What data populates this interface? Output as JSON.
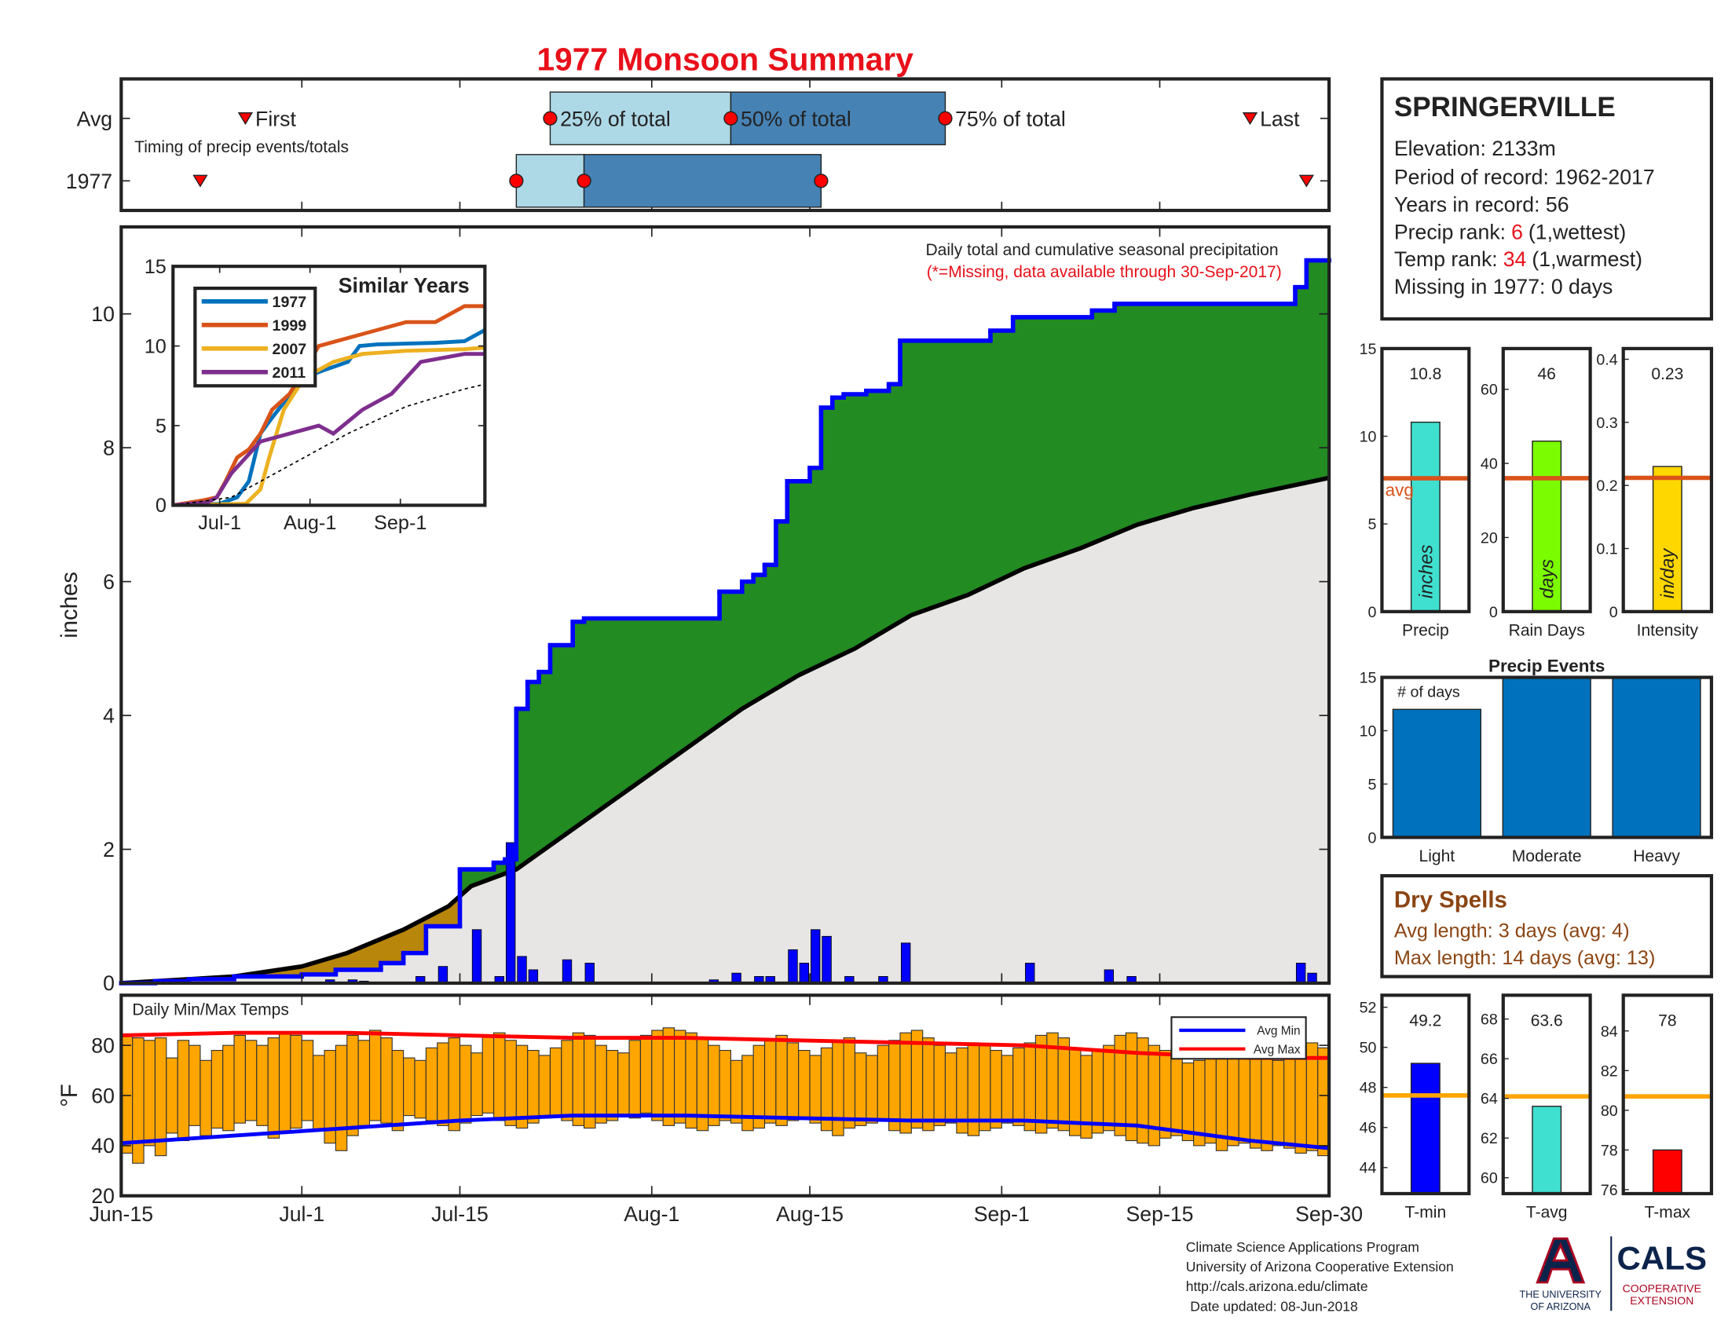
{
  "title": "1977 Monsoon Summary",
  "chart_data": [
    {
      "type": "timing",
      "rows": [
        "Avg",
        "1977"
      ],
      "xlim": [
        0,
        107
      ],
      "xticks": [
        0,
        16,
        30,
        47,
        61,
        78,
        92,
        107
      ],
      "series": [
        {
          "first": 11,
          "q25": 38,
          "q50": 54,
          "q75": 73,
          "last": 100
        },
        {
          "first": 7,
          "q25": 35,
          "q50": 41,
          "q75": 62,
          "last": 105
        }
      ],
      "labels": {
        "first": "First",
        "q25": "25% of total",
        "q50": "50% of total",
        "q75": "75% of total",
        "last": "Last"
      },
      "note": "Timing of precip events/totals",
      "colors": [
        "#add8e6",
        "#4682b4"
      ],
      "marker_color": "#ff0000"
    },
    {
      "type": "cumulative",
      "ylabel": "inches",
      "xlim": [
        0,
        107
      ],
      "ylim": [
        0,
        11.3
      ],
      "xticks": [
        0,
        16,
        30,
        47,
        61,
        78,
        92,
        107
      ],
      "yticks": [
        0,
        2,
        4,
        6,
        8,
        10
      ],
      "annotation": "Daily total and cumulative seasonal precipitation",
      "note": "(*=Missing, data available through 30-Sep-2017)",
      "series": [
        {
          "color": "#0000ff",
          "x": [
            0,
            3,
            6,
            10,
            16,
            19,
            23,
            25,
            27,
            30,
            33,
            34,
            35,
            36,
            37,
            38,
            40,
            41,
            53,
            55,
            56,
            57,
            58,
            59,
            61,
            62,
            63,
            64,
            66,
            68,
            69,
            77,
            79,
            86,
            88,
            104,
            105
          ],
          "values": [
            0,
            0.03,
            0.06,
            0.1,
            0.13,
            0.2,
            0.3,
            0.45,
            0.85,
            1.7,
            1.8,
            1.85,
            4.1,
            4.5,
            4.65,
            5.05,
            5.4,
            5.45,
            5.85,
            6.0,
            6.1,
            6.25,
            6.9,
            7.5,
            7.7,
            8.6,
            8.75,
            8.8,
            8.85,
            8.95,
            9.6,
            9.75,
            9.95,
            10.05,
            10.15,
            10.4,
            10.8
          ]
        },
        {
          "color": "#000000",
          "x": [
            0,
            10,
            16,
            20,
            25,
            29,
            31,
            35,
            40,
            45,
            50,
            55,
            60,
            65,
            70,
            75,
            80,
            85,
            90,
            95,
            100,
            107
          ],
          "values": [
            0,
            0.1,
            0.25,
            0.45,
            0.8,
            1.15,
            1.45,
            1.7,
            2.3,
            2.9,
            3.5,
            4.1,
            4.6,
            5.0,
            5.5,
            5.8,
            6.2,
            6.5,
            6.85,
            7.1,
            7.3,
            7.55
          ]
        }
      ],
      "daily": {
        "color": "#0000ff",
        "x": [
          18,
          20,
          21,
          26,
          28,
          31,
          33,
          34,
          35,
          36,
          39,
          41,
          52,
          54,
          56,
          57,
          59,
          60,
          61,
          62,
          64,
          67,
          69,
          80,
          87,
          89,
          104,
          105
        ],
        "values": [
          0.05,
          0.05,
          0.03,
          0.1,
          0.25,
          0.8,
          0.1,
          2.1,
          0.4,
          0.2,
          0.35,
          0.3,
          0.05,
          0.15,
          0.1,
          0.1,
          0.5,
          0.3,
          0.8,
          0.7,
          0.1,
          0.1,
          0.6,
          0.3,
          0.2,
          0.1,
          0.3,
          0.15
        ]
      },
      "fill_colors": {
        "above": "#228b22",
        "below": "#b8860b",
        "base": "#e8e6e4"
      }
    },
    {
      "type": "line",
      "title": "Similar Years",
      "xlim": [
        0,
        107
      ],
      "ylim": [
        0,
        15
      ],
      "xticks": [
        {
          "value": 16,
          "label": "Jul-1"
        },
        {
          "value": 47,
          "label": "Aug-1"
        },
        {
          "value": 78,
          "label": "Sep-1"
        }
      ],
      "yticks": [
        0,
        5,
        10,
        15
      ],
      "series": [
        {
          "name": "1977",
          "color": "#0072bd",
          "x": [
            0,
            16,
            22,
            26,
            28,
            30,
            34,
            37,
            45,
            52,
            60,
            64,
            70,
            90,
            100,
            107
          ],
          "values": [
            0,
            0.1,
            0.5,
            1.5,
            3,
            4.5,
            5.5,
            6.2,
            8,
            8.5,
            9.0,
            10,
            10.1,
            10.2,
            10.3,
            11.0
          ]
        },
        {
          "name": "1999",
          "color": "#d95319",
          "x": [
            0,
            10,
            15,
            18,
            22,
            26,
            30,
            34,
            40,
            50,
            60,
            70,
            80,
            90,
            100,
            107
          ],
          "values": [
            0,
            0.3,
            0.5,
            1.5,
            3,
            3.5,
            4.5,
            6,
            7,
            10,
            10.5,
            11.0,
            11.5,
            11.5,
            12.5,
            12.5
          ]
        },
        {
          "name": "2007",
          "color": "#edb120",
          "x": [
            0,
            25,
            30,
            33,
            38,
            45,
            50,
            55,
            65,
            80,
            100,
            107
          ],
          "values": [
            0,
            0.1,
            1.0,
            3.0,
            6,
            8,
            8.5,
            9,
            9.5,
            9.7,
            9.8,
            9.9
          ]
        },
        {
          "name": "2011",
          "color": "#7e2f8e",
          "x": [
            0,
            12,
            15,
            20,
            30,
            40,
            50,
            55,
            65,
            75,
            85,
            100,
            107
          ],
          "values": [
            0,
            0.2,
            0.5,
            2,
            4,
            4.5,
            5,
            4.5,
            6,
            7,
            9,
            9.5,
            9.5
          ]
        },
        {
          "color": "#000000",
          "dashed": true,
          "x": [
            0,
            20,
            40,
            60,
            80,
            100,
            107
          ],
          "values": [
            0,
            0.5,
            2.5,
            4.5,
            6.2,
            7.3,
            7.6
          ]
        }
      ]
    },
    {
      "type": "temps",
      "title": "Daily Min/Max Temps",
      "ylabel": "°F",
      "xlim": [
        0,
        107
      ],
      "ylim": [
        20,
        100
      ],
      "yticks": [
        20,
        40,
        60,
        80
      ],
      "xticks": [
        {
          "value": 0,
          "label": "Jun-15"
        },
        {
          "value": 16,
          "label": "Jul-1"
        },
        {
          "value": 30,
          "label": "Jul-15"
        },
        {
          "value": 47,
          "label": "Aug-1"
        },
        {
          "value": 61,
          "label": "Aug-15"
        },
        {
          "value": 78,
          "label": "Sep-1"
        },
        {
          "value": 92,
          "label": "Sep-15"
        },
        {
          "value": 107,
          "label": "Sep-30"
        }
      ],
      "bar_color": "#ffa500",
      "max": [
        84,
        83,
        82,
        83,
        75,
        82,
        80,
        74,
        78,
        80,
        84,
        82,
        80,
        83,
        85,
        84,
        82,
        76,
        78,
        80,
        84,
        82,
        86,
        83,
        78,
        75,
        74,
        79,
        81,
        83,
        80,
        77,
        84,
        85,
        82,
        80,
        78,
        76,
        79,
        82,
        85,
        84,
        80,
        78,
        77,
        82,
        84,
        86,
        87,
        86,
        85,
        83,
        80,
        78,
        74,
        76,
        80,
        82,
        84,
        81,
        78,
        76,
        79,
        82,
        83,
        77,
        76,
        80,
        82,
        85,
        86,
        83,
        80,
        77,
        79,
        81,
        80,
        78,
        76,
        79,
        81,
        84,
        85,
        83,
        79,
        76,
        78,
        80,
        84,
        85,
        83,
        80,
        78,
        76,
        73,
        74,
        76,
        77,
        78,
        79,
        76,
        75,
        74,
        77,
        80,
        81,
        79,
        76
      ],
      "min": [
        37,
        33,
        40,
        36,
        45,
        42,
        48,
        44,
        47,
        46,
        49,
        50,
        48,
        43,
        45,
        47,
        50,
        46,
        41,
        38,
        44,
        48,
        50,
        49,
        46,
        52,
        51,
        50,
        48,
        46,
        49,
        52,
        53,
        50,
        48,
        47,
        49,
        51,
        52,
        50,
        48,
        47,
        49,
        50,
        52,
        51,
        53,
        50,
        48,
        49,
        47,
        46,
        48,
        50,
        49,
        46,
        47,
        49,
        48,
        50,
        51,
        49,
        46,
        44,
        47,
        48,
        49,
        50,
        46,
        45,
        47,
        46,
        48,
        49,
        45,
        44,
        46,
        47,
        49,
        48,
        46,
        45,
        47,
        46,
        44,
        43,
        45,
        46,
        44,
        42,
        41,
        40,
        43,
        44,
        42,
        40,
        41,
        38,
        40,
        41,
        39,
        38,
        40,
        39,
        37,
        38,
        36,
        38
      ],
      "series": [
        {
          "name": "Avg Min",
          "color": "#0000ff",
          "x": [
            0,
            10,
            20,
            30,
            40,
            50,
            60,
            70,
            80,
            90,
            100,
            107
          ],
          "values": [
            41,
            44,
            47,
            50,
            52,
            52,
            51,
            50,
            50,
            48,
            42,
            39
          ]
        },
        {
          "name": "Avg Max",
          "color": "#ff0000",
          "x": [
            0,
            10,
            20,
            30,
            40,
            50,
            60,
            70,
            80,
            90,
            100,
            107
          ],
          "values": [
            84,
            85,
            85,
            84,
            83,
            83,
            82,
            81,
            80,
            77,
            75,
            75
          ]
        }
      ]
    },
    {
      "type": "stat",
      "label": "Precip",
      "value": 10.8,
      "avg": 7.6,
      "avg_label": "avg",
      "unit": "inches",
      "ylim": [
        0,
        15
      ],
      "yticks": [
        0,
        5,
        10,
        15
      ],
      "color": "#40e0d0",
      "avg_color": "#d95319"
    },
    {
      "type": "stat",
      "label": "Rain Days",
      "value": 46,
      "avg": 36,
      "unit": "days",
      "ylim": [
        0,
        71
      ],
      "yticks": [
        0,
        20,
        40,
        60
      ],
      "color": "#7cfc00",
      "avg_color": "#d95319"
    },
    {
      "type": "stat",
      "label": "Intensity",
      "value": 0.23,
      "avg": 0.212,
      "unit": "in/day",
      "ylim": [
        0,
        0.417
      ],
      "yticks": [
        0,
        0.1,
        0.2,
        0.3,
        0.4
      ],
      "color": "#ffd700",
      "avg_color": "#d95319"
    },
    {
      "type": "bar",
      "title": "Precip Events",
      "ylabel": "# of days",
      "categories": [
        "Light",
        "Moderate",
        "Heavy"
      ],
      "values": [
        12,
        15,
        15
      ],
      "ylim": [
        0,
        15
      ],
      "yticks": [
        0,
        5,
        10,
        15
      ],
      "color": "#0072bd"
    },
    {
      "type": "stat",
      "label": "T-min",
      "value": 49.2,
      "avg": 47.6,
      "ylim": [
        42.7,
        52.6
      ],
      "yticks": [
        44,
        46,
        48,
        50,
        52
      ],
      "color": "#0000ff",
      "avg_color": "#ffa500"
    },
    {
      "type": "stat",
      "label": "T-avg",
      "value": 63.6,
      "avg": 64.1,
      "ylim": [
        59.2,
        69.2
      ],
      "yticks": [
        60,
        62,
        64,
        66,
        68
      ],
      "color": "#40e0d0",
      "avg_color": "#ffa500"
    },
    {
      "type": "stat",
      "label": "T-max",
      "value": 78,
      "avg": 80.7,
      "ylim": [
        75.8,
        85.8
      ],
      "yticks": [
        76,
        78,
        80,
        82,
        84
      ],
      "color": "#ff0000",
      "avg_color": "#ffa500"
    }
  ],
  "station": {
    "name": "SPRINGERVILLE",
    "lines": [
      "Elevation: 2133m",
      "Period of record: 1962-2017",
      "Years in record: 56"
    ],
    "precip_rank": {
      "label": "Precip rank:",
      "value": 6,
      "note": "(1,wettest)"
    },
    "temp_rank": {
      "label": "Temp rank:",
      "value": 34,
      "note": "(1,warmest)"
    },
    "missing": "Missing in 1977: 0 days"
  },
  "dry_spells": {
    "title": "Dry Spells",
    "lines": [
      "Avg length: 3 days (avg: 4)",
      "Max length: 14 days (avg: 13)"
    ]
  },
  "footer": [
    "Climate Science Applications Program",
    "University of Arizona Cooperative Extension",
    "http://cals.arizona.edu/climate",
    "Date updated: 08-Jun-2018"
  ],
  "logo": {
    "university": [
      "THE UNIVERSITY",
      "OF ARIZONA"
    ],
    "cals": "CALS",
    "extension": [
      "COOPERATIVE",
      "EXTENSION"
    ]
  }
}
